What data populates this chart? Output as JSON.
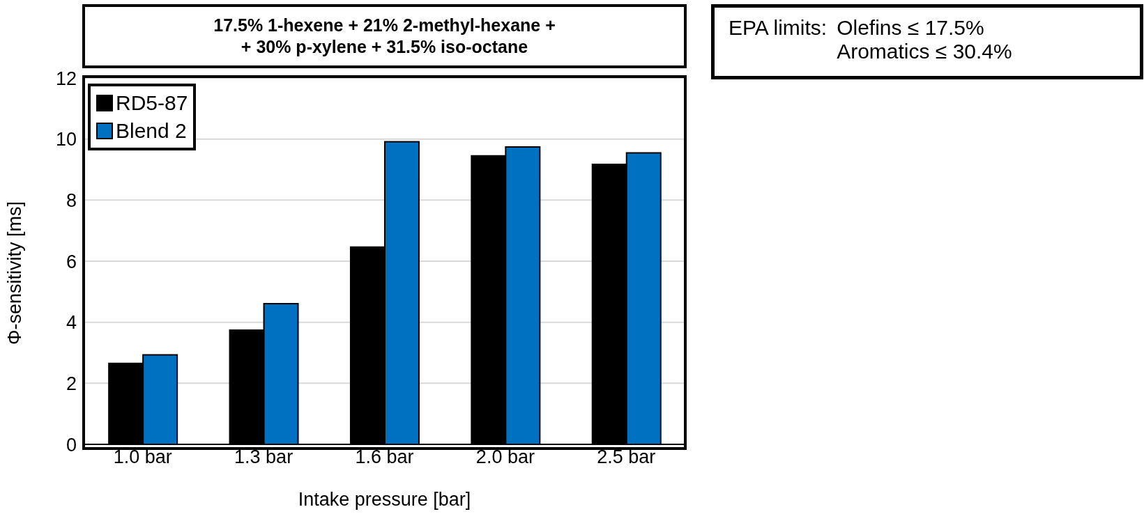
{
  "chart_data": {
    "type": "bar",
    "title": "17.5% 1-hexene + 21% 2-methyl-hexane +\n+ 30% p-xylene + 31.5% iso-octane",
    "xlabel": "Intake pressure [bar]",
    "ylabel": "Φ-sensitivity [ms]",
    "categories": [
      "1.0 bar",
      "1.3 bar",
      "1.6 bar",
      "2.0 bar",
      "2.5 bar"
    ],
    "series": [
      {
        "name": "RD5-87",
        "color": "#000000",
        "values": [
          2.65,
          3.74,
          6.46,
          9.45,
          9.17
        ]
      },
      {
        "name": "Blend 2",
        "color": "#0070c0",
        "values": [
          2.93,
          4.61,
          9.91,
          9.74,
          9.55
        ]
      }
    ],
    "ylim": [
      0,
      12
    ],
    "yticks": [
      0,
      2,
      4,
      6,
      8,
      10,
      12
    ],
    "grid": "y",
    "legend": "top left",
    "annotations": [
      "EPA limits:\tOlefins ≤ 17.5%\n\tAromatics ≤ 30.4%"
    ]
  }
}
